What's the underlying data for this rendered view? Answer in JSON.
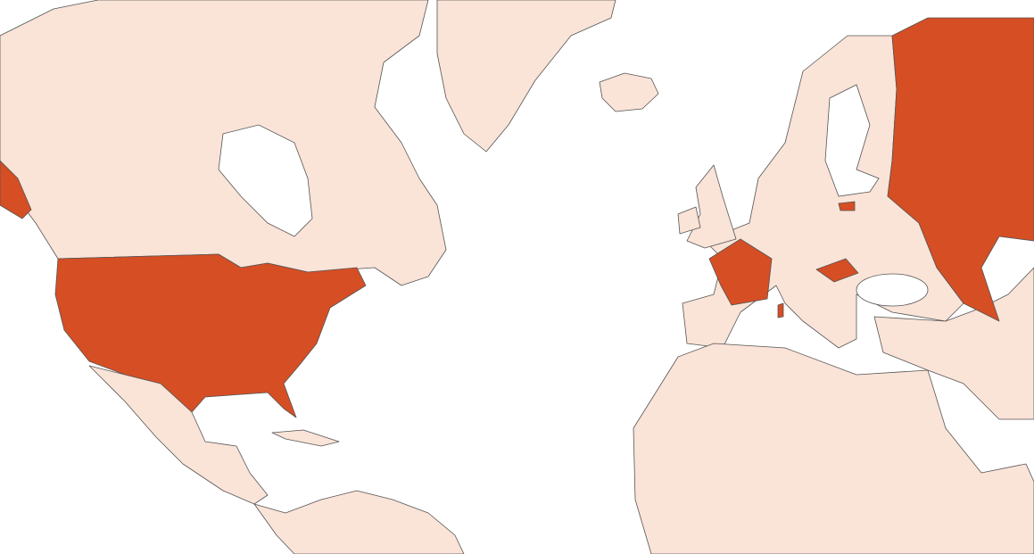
{
  "map": {
    "colors": {
      "background": "#ffffff",
      "land": "#fae3d7",
      "highlighted": "#d64e24",
      "border": "#555555"
    },
    "highlighted_regions": [
      "united-states",
      "france",
      "hungary",
      "russia"
    ]
  }
}
